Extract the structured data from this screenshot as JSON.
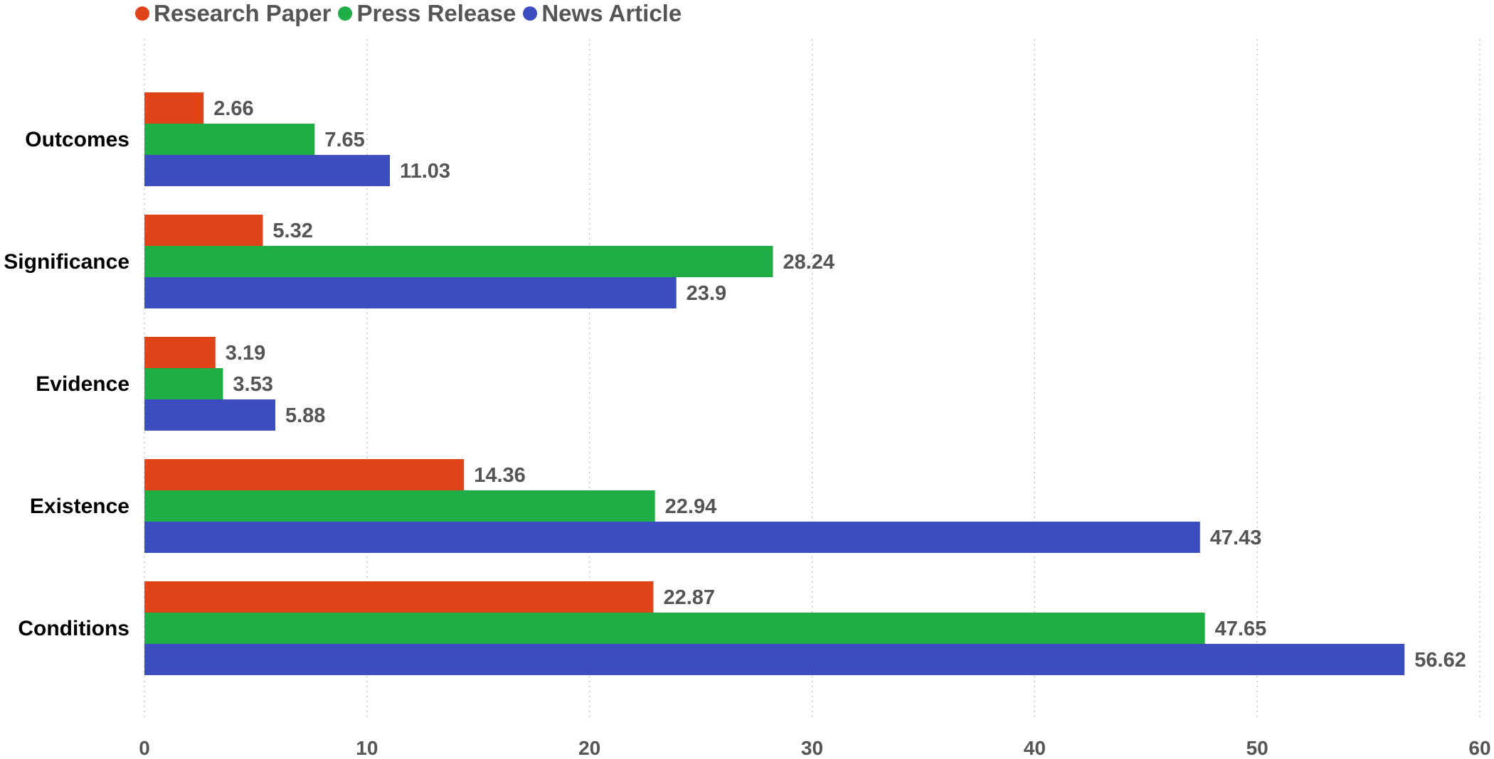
{
  "chart_data": {
    "type": "bar",
    "orientation": "horizontal",
    "categories": [
      "Outcomes",
      "Significance",
      "Evidence",
      "Existence",
      "Conditions"
    ],
    "series": [
      {
        "name": "Research Paper",
        "color": "#E04418",
        "values": [
          2.66,
          5.32,
          3.19,
          14.36,
          22.87
        ]
      },
      {
        "name": "Press Release",
        "color": "#1FAD45",
        "values": [
          7.65,
          28.24,
          3.53,
          22.94,
          47.65
        ]
      },
      {
        "name": "News Article",
        "color": "#3C4DBF",
        "values": [
          11.03,
          23.9,
          5.88,
          47.43,
          56.62
        ]
      }
    ],
    "xlim": [
      0,
      60
    ],
    "xticks": [
      "0",
      "10",
      "20",
      "30",
      "40",
      "50",
      "60"
    ],
    "grid": "vertical dotted",
    "legend": "top-left"
  }
}
